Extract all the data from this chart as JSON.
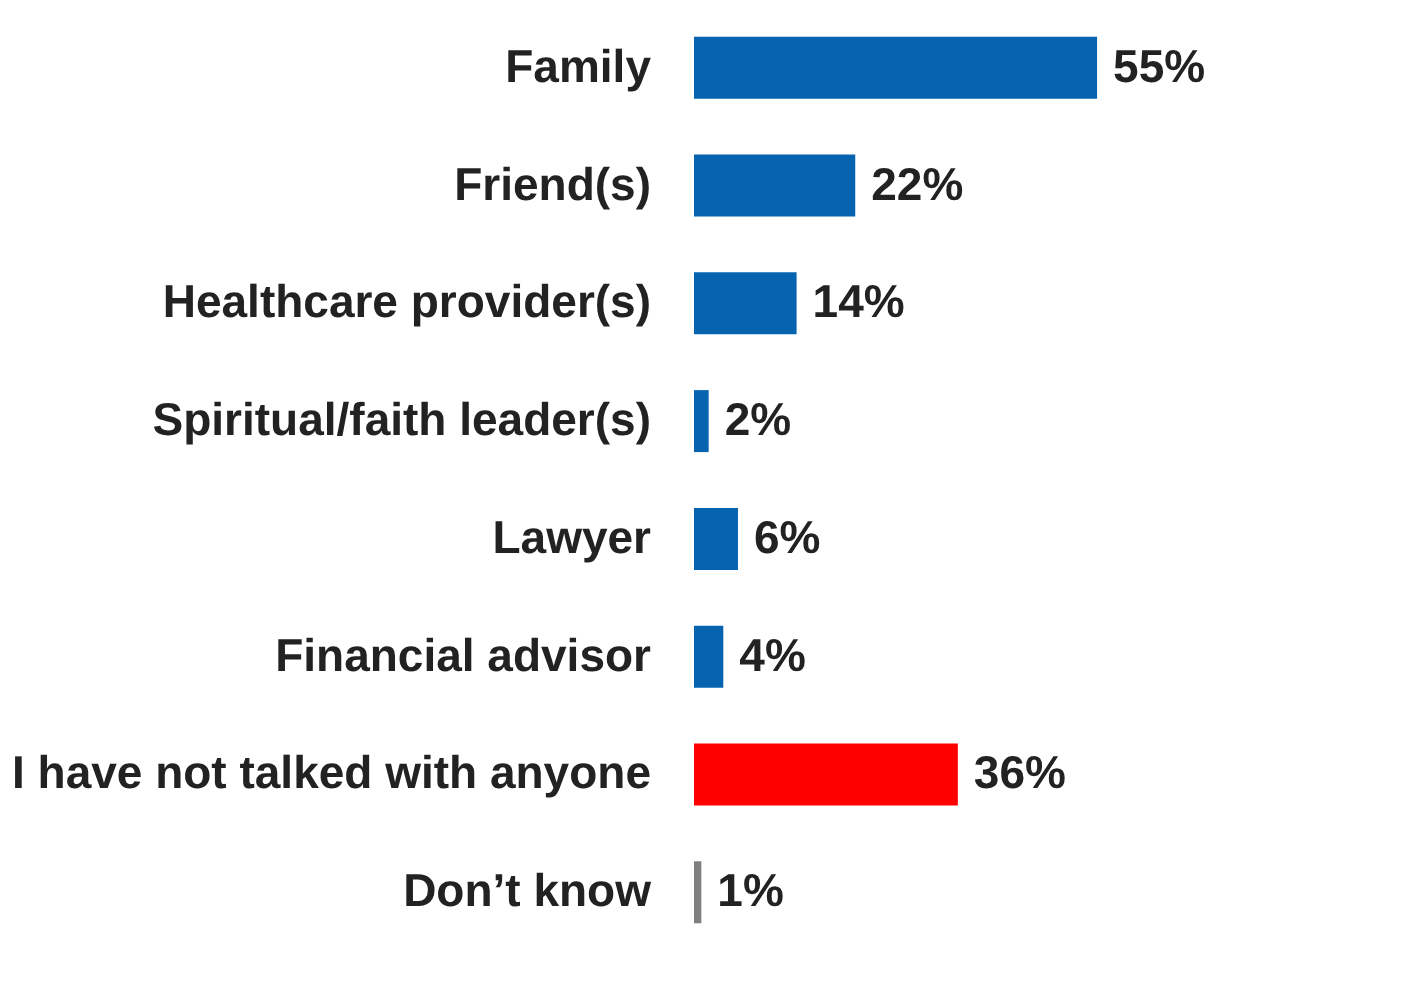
{
  "chart_data": {
    "type": "bar",
    "orientation": "horizontal",
    "categories": [
      "Family",
      "Friend(s)",
      "Healthcare provider(s)",
      "Spiritual/faith leader(s)",
      "Lawyer",
      "Financial advisor",
      "I have not talked with anyone",
      "Don’t know"
    ],
    "values": [
      55,
      22,
      14,
      2,
      6,
      4,
      36,
      1
    ],
    "value_labels": [
      "55%",
      "22%",
      "14%",
      "2%",
      "6%",
      "4%",
      "36%",
      "1%"
    ],
    "colors": [
      "#0563b0",
      "#0563b0",
      "#0563b0",
      "#0563b0",
      "#0563b0",
      "#0563b0",
      "#ff0000",
      "#7f7f7f"
    ],
    "grid": false
  }
}
